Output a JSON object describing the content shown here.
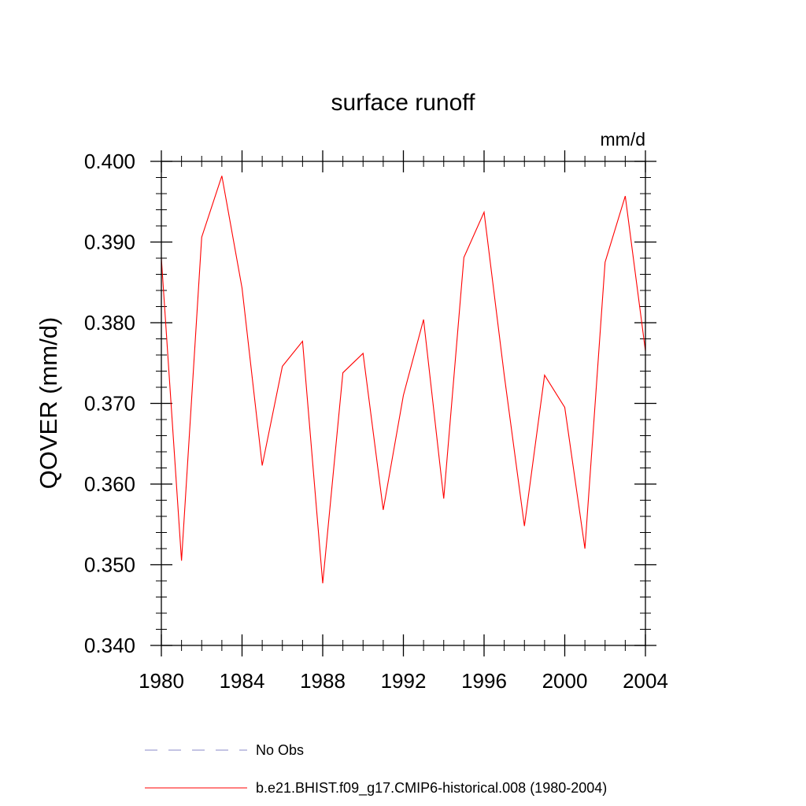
{
  "chart_data": {
    "type": "line",
    "title": "surface runoff",
    "units_label": "mm/d",
    "ylabel": "QOVER  (mm/d)",
    "xlabel": "",
    "xlim": [
      1980,
      2004
    ],
    "ylim": [
      0.34,
      0.4
    ],
    "x_ticks": [
      "1980",
      "1984",
      "1988",
      "1992",
      "1996",
      "2000",
      "2004"
    ],
    "y_ticks": [
      "0.400",
      "0.390",
      "0.380",
      "0.370",
      "0.360",
      "0.350",
      "0.340"
    ],
    "grid": false,
    "legend_position": "bottom",
    "x": [
      1980,
      1981,
      1982,
      1983,
      1984,
      1985,
      1986,
      1987,
      1988,
      1989,
      1990,
      1991,
      1992,
      1993,
      1994,
      1995,
      1996,
      1997,
      1998,
      1999,
      2000,
      2001,
      2002,
      2003,
      2004
    ],
    "series": [
      {
        "name": "b.e21.BHIST.f09_g17.CMIP6-historical.008 (1980-2004)",
        "color": "#ff0000",
        "style": "solid",
        "values": [
          0.388,
          0.3505,
          0.3906,
          0.3982,
          0.3843,
          0.3623,
          0.3746,
          0.3777,
          0.3477,
          0.3738,
          0.3762,
          0.3568,
          0.371,
          0.3804,
          0.3582,
          0.3881,
          0.3937,
          0.3735,
          0.3548,
          0.3735,
          0.3695,
          0.352,
          0.3875,
          0.3957,
          0.3765
        ]
      }
    ],
    "legend": [
      {
        "label": "No Obs",
        "color": "#8a8ac8",
        "style": "dashed"
      },
      {
        "label": "b.e21.BHIST.f09_g17.CMIP6-historical.008 (1980-2004)",
        "color": "#ff0000",
        "style": "solid"
      }
    ]
  }
}
